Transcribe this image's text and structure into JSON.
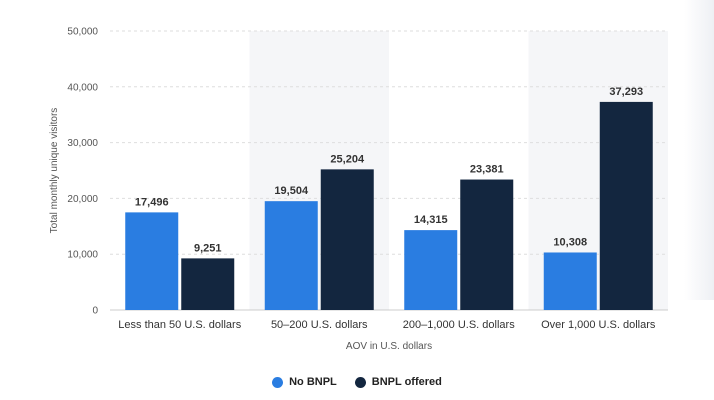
{
  "chart_data": {
    "type": "bar",
    "title": "",
    "xlabel": "AOV in U.S. dollars",
    "ylabel": "Total monthly unique visitors",
    "ylim": [
      0,
      50000
    ],
    "yticks": [
      0,
      10000,
      20000,
      30000,
      40000,
      50000
    ],
    "ytick_labels": [
      "0",
      "10,000",
      "20,000",
      "30,000",
      "40,000",
      "50,000"
    ],
    "categories": [
      "Less than 50 U.S. dollars",
      "50–200 U.S. dollars",
      "200–1,000 U.S. dollars",
      "Over 1,000 U.S. dollars"
    ],
    "series": [
      {
        "name": "No BNPL",
        "color": "#2a7de1",
        "values": [
          17496,
          19504,
          14315,
          10308
        ],
        "labels": [
          "17,496",
          "19,504",
          "14,315",
          "10,308"
        ]
      },
      {
        "name": "BNPL offered",
        "color": "#13263f",
        "values": [
          9251,
          25204,
          23381,
          37293
        ],
        "labels": [
          "9,251",
          "25,204",
          "23,381",
          "37,293"
        ]
      }
    ],
    "legend_position": "bottom-center",
    "grid": true
  }
}
